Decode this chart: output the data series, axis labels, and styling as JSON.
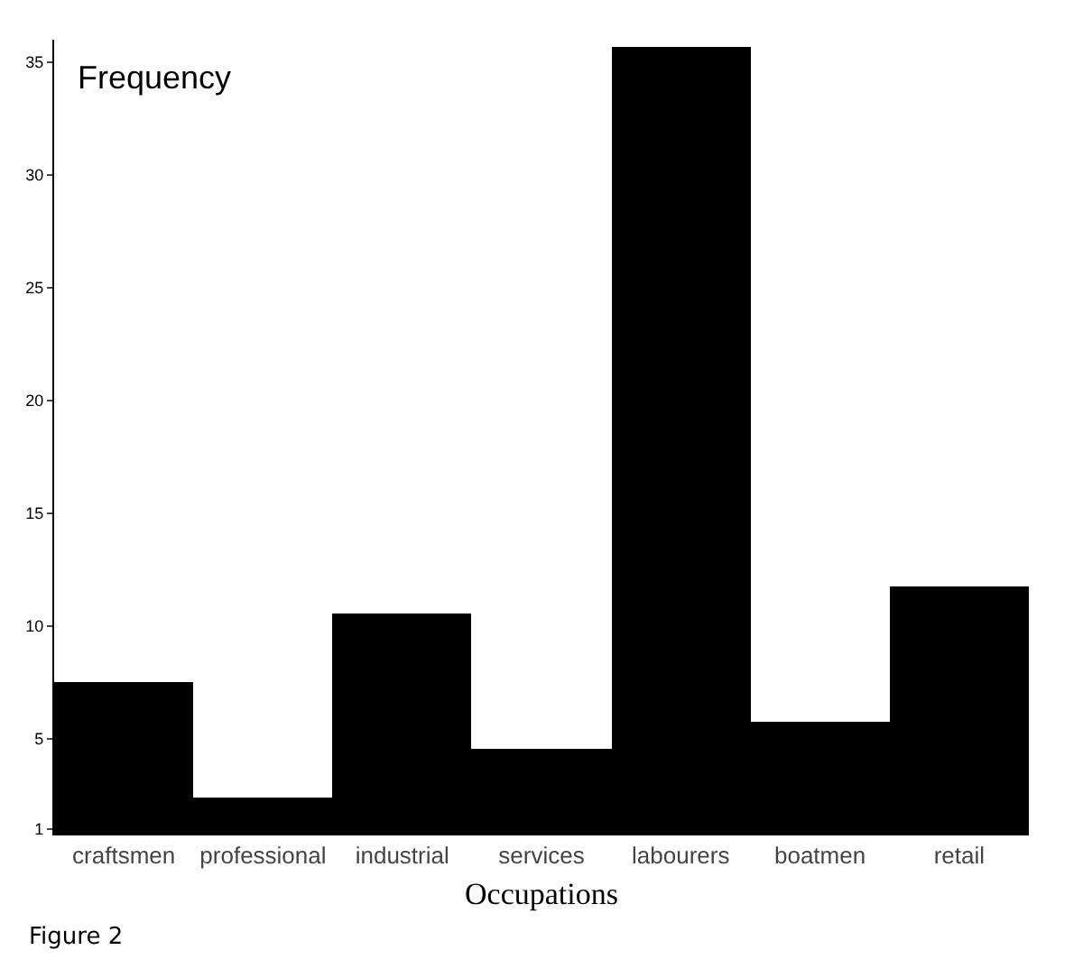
{
  "chart_data": {
    "type": "bar",
    "ylabel": "Frequency",
    "xlabel": "Occupations",
    "annotations": [
      "Figure 2"
    ],
    "categories": [
      "craftsmen",
      "professional",
      "industrial",
      "services",
      "labourers",
      "boatmen",
      "retail"
    ],
    "values": [
      7.5,
      2.4,
      10.6,
      4.6,
      35.7,
      5.8,
      11.8
    ],
    "color": "#000000",
    "ylim": [
      0.8,
      36
    ],
    "yticks": [
      1,
      5,
      10,
      15,
      20,
      25,
      30,
      35
    ],
    "legend": false
  }
}
